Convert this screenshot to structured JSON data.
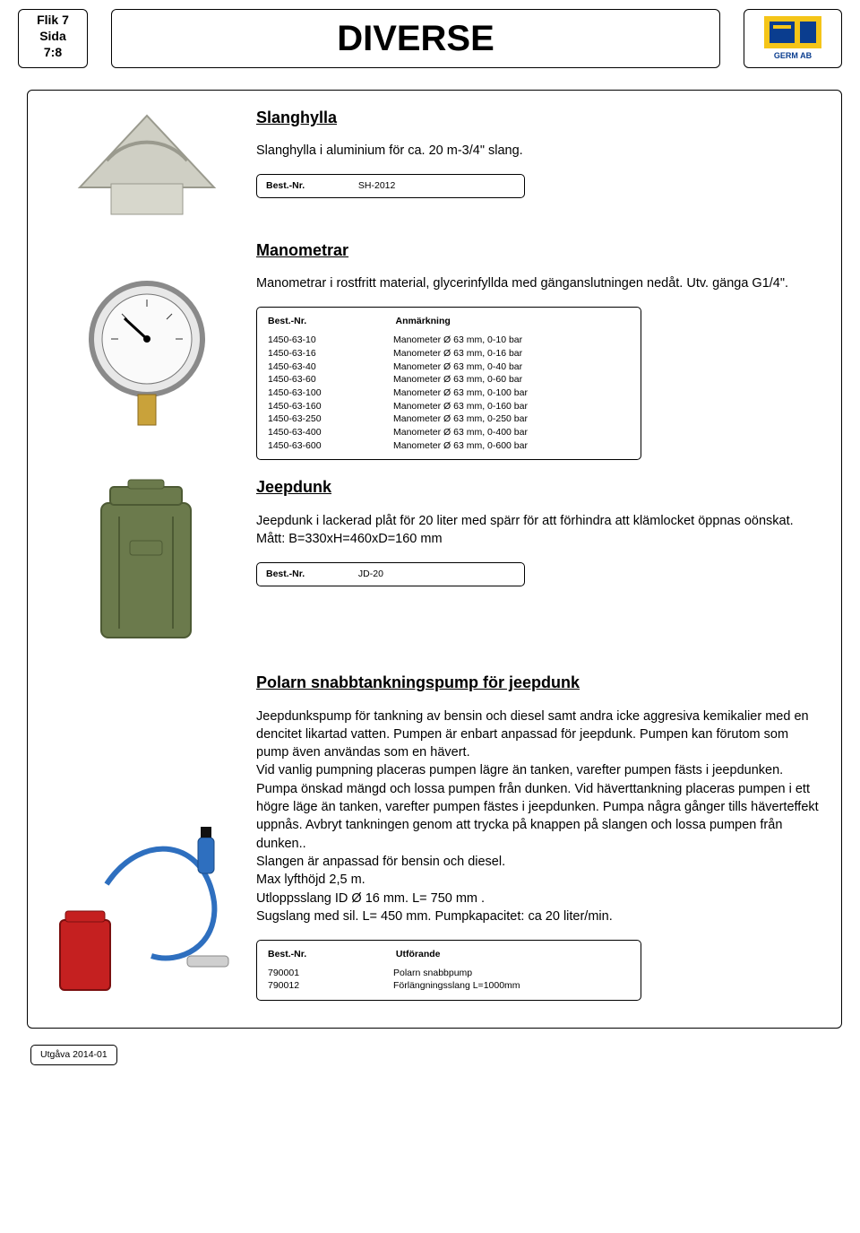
{
  "header": {
    "flik": "Flik 7",
    "sida_label": "Sida",
    "sida_value": "7:8",
    "title": "DIVERSE",
    "brand": "GERM AB"
  },
  "section1": {
    "title": "Slanghylla",
    "desc": "Slanghylla i aluminium för ca. 20 m-3/4\" slang.",
    "box_label": "Best.-Nr.",
    "box_value": "SH-2012"
  },
  "section2": {
    "title": "Manometrar",
    "desc": "Manometrar i rostfritt material, glycerinfyllda med gänganslutningen nedåt. Utv. gänga G1/4\".",
    "box_col1": "Best.-Nr.",
    "box_col2": "Anmärkning",
    "rows": [
      {
        "nr": "1450-63-10",
        "txt": "Manometer  Ø 63 mm, 0-10 bar"
      },
      {
        "nr": "1450-63-16",
        "txt": "Manometer  Ø 63 mm, 0-16 bar"
      },
      {
        "nr": "1450-63-40",
        "txt": "Manometer  Ø 63 mm, 0-40 bar"
      },
      {
        "nr": "1450-63-60",
        "txt": "Manometer  Ø 63 mm, 0-60 bar"
      },
      {
        "nr": "1450-63-100",
        "txt": "Manometer  Ø 63 mm, 0-100 bar"
      },
      {
        "nr": "1450-63-160",
        "txt": "Manometer  Ø 63 mm, 0-160 bar"
      },
      {
        "nr": "1450-63-250",
        "txt": "Manometer  Ø 63 mm, 0-250 bar"
      },
      {
        "nr": "1450-63-400",
        "txt": "Manometer  Ø 63 mm, 0-400  bar"
      },
      {
        "nr": "1450-63-600",
        "txt": "Manometer  Ø 63 mm, 0-600 bar"
      }
    ]
  },
  "section3": {
    "title": "Jeepdunk",
    "desc": "Jeepdunk i lackerad plåt för 20 liter med spärr för att förhindra att klämlocket öppnas oönskat.\nMått: B=330xH=460xD=160 mm",
    "box_label": "Best.-Nr.",
    "box_value": "JD-20"
  },
  "section4": {
    "title": "Polarn snabbtankningspump för jeepdunk",
    "desc": "Jeepdunkspump för tankning av bensin och diesel samt andra icke aggresiva kemikalier med en dencitet likartad vatten. Pumpen är enbart  anpassad för jeepdunk. Pumpen kan förutom som pump även användas som en hävert.\nVid vanlig pumpning placeras pumpen lägre än tanken, varefter pumpen fästs i jeepdunken. Pumpa önskad mängd och lossa pumpen från dunken. Vid häverttankning placeras pumpen i ett högre läge än tanken, varefter pumpen fästes i jeepdunken. Pumpa några gånger tills häverteffekt uppnås. Avbryt tankningen genom att trycka på knappen på slangen och lossa pumpen från dunken..\nSlangen är anpassad för bensin och diesel.\nMax lyfthöjd 2,5 m.\nUtloppsslang  ID Ø 16 mm. L= 750 mm .\nSugslang med sil. L= 450 mm. Pumpkapacitet: ca 20 liter/min.",
    "box_col1": "Best.-Nr.",
    "box_col2": "Utförande",
    "rows": [
      {
        "nr": "790001",
        "txt": "Polarn snabbpump"
      },
      {
        "nr": "790012",
        "txt": "Förlängningsslang L=1000mm"
      }
    ]
  },
  "footer": {
    "utgava": "Utgåva 2014-01"
  },
  "colors": {
    "brand_blue": "#0a3d8f",
    "brand_yellow": "#f5c518",
    "jeepcan": "#6b7a4c",
    "red": "#c52020",
    "pump_blue": "#2e6fbf"
  }
}
